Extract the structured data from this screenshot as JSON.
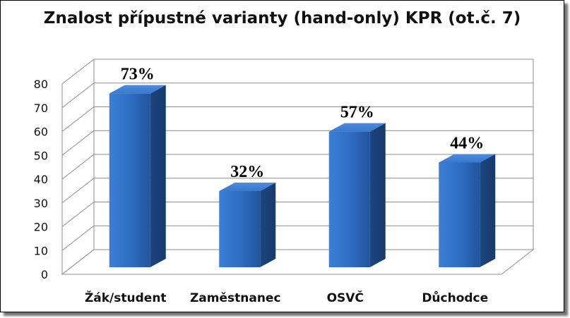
{
  "chart_data": {
    "type": "bar",
    "title": "Znalost přípustné varianty (hand-only) KPR (ot.č. 7)",
    "categories": [
      "Žák/student",
      "Zaměstnanec",
      "OSVČ",
      "Důchodce"
    ],
    "values": [
      73,
      32,
      57,
      44
    ],
    "data_labels": [
      "73%",
      "32%",
      "57%",
      "44%"
    ],
    "y_ticks": [
      "0",
      "10",
      "20",
      "30",
      "40",
      "50",
      "60",
      "70",
      "80"
    ],
    "ylim": [
      0,
      80
    ],
    "grid": true,
    "legend": false,
    "bar_color": "#2f6ec2",
    "xlabel": "",
    "ylabel": ""
  }
}
